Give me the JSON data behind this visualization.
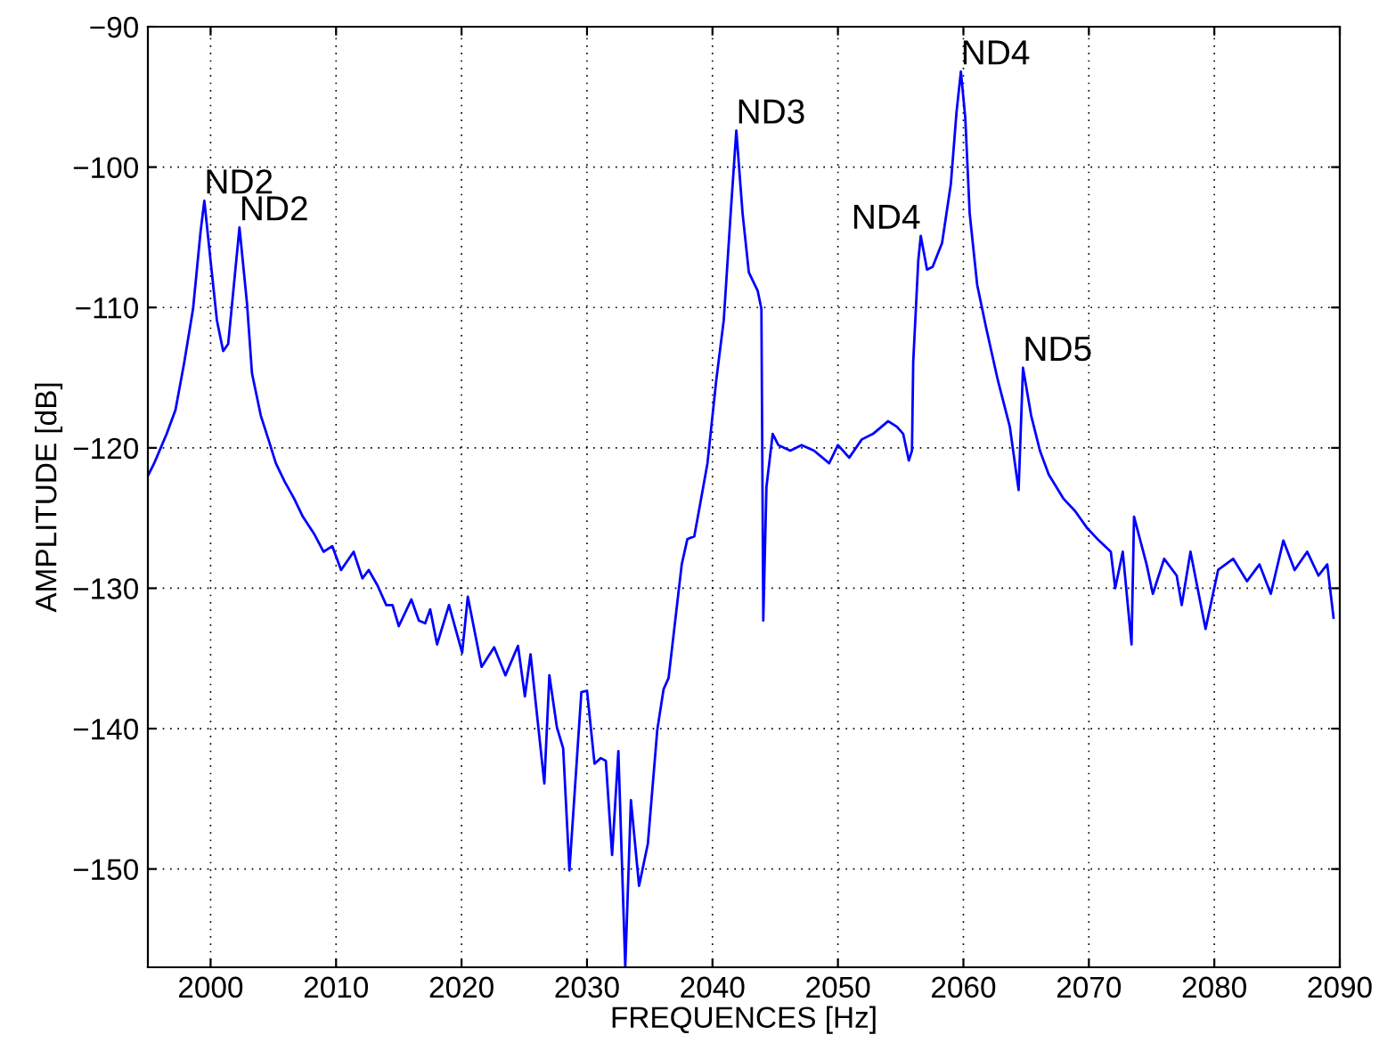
{
  "chart_data": {
    "type": "line",
    "xlabel": "FREQUENCES [Hz]",
    "ylabel": "AMPLITUDE [dB]",
    "series": [
      {
        "color": "#0000ff",
        "x": [
          1995.05,
          1995.5,
          1996.5,
          1997.2,
          1997.9,
          1998.6,
          1999.2,
          1999.5,
          2000,
          2000.5,
          2001,
          2001.4,
          2001.9,
          2002.3,
          2002.9,
          2003.3,
          2004.0,
          2004.75,
          2005.2,
          2005.9,
          2006.65,
          2007.35,
          2008.3,
          2009,
          2009.7,
          2010.4,
          2011.4,
          2012.1,
          2012.6,
          2013.3,
          2014,
          2014.5,
          2015,
          2016,
          2016.6,
          2017.1,
          2017.5,
          2018.05,
          2019,
          2020.05,
          2020.5,
          2021.6,
          2022.6,
          2023.5,
          2024.5,
          2025.05,
          2025.5,
          2026.6,
          2027,
          2027.6,
          2028.1,
          2028.6,
          2029.55,
          2030,
          2030.6,
          2031.1,
          2031.5,
          2032,
          2032.5,
          2033.05,
          2033.5,
          2034.15,
          2034.85,
          2035.6,
          2036.1,
          2036.5,
          2037.55,
          2038.0,
          2038.55,
          2039.1,
          2039.6,
          2040.3,
          2040.9,
          2041.45,
          2041.9,
          2042.4,
          2042.9,
          2043.6,
          2043.9,
          2044.05,
          2044.3,
          2044.8,
          2045.25,
          2046.2,
          2047.1,
          2048.1,
          2049.3,
          2050,
          2050.9,
          2051.9,
          2052.8,
          2054,
          2054.7,
          2055.2,
          2055.65,
          2055.9,
          2056.0,
          2056.4,
          2056.6,
          2057.1,
          2057.55,
          2058.3,
          2059,
          2059.45,
          2059.8,
          2060.15,
          2060.5,
          2061.1,
          2061.8,
          2062.75,
          2063.7,
          2064.4,
          2064.75,
          2065.4,
          2066.1,
          2066.8,
          2067.96,
          2068.9,
          2069.85,
          2070.8,
          2071.75,
          2072.1,
          2072.7,
          2073.4,
          2073.6,
          2074.6,
          2075.1,
          2076,
          2077,
          2077.4,
          2078.1,
          2079.3,
          2080.3,
          2081.5,
          2082.6,
          2083.6,
          2084.5,
          2085.5,
          2086.4,
          2087.4,
          2088.3,
          2089,
          2089.5
        ],
        "values": [
          -121.9,
          -121.1,
          -119,
          -117.3,
          -113.9,
          -110.1,
          -104.6,
          -102.4,
          -106.7,
          -110.9,
          -113.1,
          -112.6,
          -108,
          -104.3,
          -109.7,
          -114.7,
          -117.7,
          -119.8,
          -121.1,
          -122.4,
          -123.6,
          -124.9,
          -126.2,
          -127.4,
          -127,
          -128.7,
          -127.4,
          -129.3,
          -128.7,
          -129.8,
          -131.2,
          -131.2,
          -132.7,
          -130.8,
          -132.3,
          -132.5,
          -131.5,
          -134,
          -131.2,
          -134.6,
          -130.6,
          -135.6,
          -134.2,
          -136.2,
          -134.1,
          -137.7,
          -134.7,
          -143.9,
          -136.2,
          -139.9,
          -141.4,
          -150.1,
          -137.4,
          -137.3,
          -142.5,
          -142.1,
          -142.3,
          -149,
          -141.6,
          -157,
          -145.1,
          -151.2,
          -148.2,
          -140.1,
          -137.2,
          -136.4,
          -128.3,
          -126.5,
          -126.3,
          -123.6,
          -121.1,
          -115.2,
          -110.9,
          -103.3,
          -97.4,
          -103.3,
          -107.5,
          -108.8,
          -110.1,
          -132.3,
          -122.8,
          -119,
          -119.8,
          -120.2,
          -119.8,
          -120.2,
          -121.1,
          -119.8,
          -120.7,
          -119.4,
          -119,
          -118.1,
          -118.5,
          -119,
          -120.9,
          -120.2,
          -113.9,
          -106.7,
          -104.9,
          -107.3,
          -107.1,
          -105.4,
          -101.2,
          -96.1,
          -93.2,
          -96.5,
          -103.3,
          -108.4,
          -111.4,
          -115.2,
          -118.5,
          -123,
          -114.3,
          -117.7,
          -120.2,
          -121.9,
          -123.6,
          -124.5,
          -125.7,
          -126.6,
          -127.4,
          -130,
          -127.4,
          -134,
          -124.9,
          -128.3,
          -130.4,
          -127.9,
          -129.1,
          -131.2,
          -127.4,
          -132.9,
          -128.7,
          -127.9,
          -129.5,
          -128.3,
          -130.4,
          -126.6,
          -128.7,
          -127.4,
          -129.1,
          -128.3,
          -132.1
        ]
      }
    ],
    "xlim": [
      1995,
      2090
    ],
    "ylim": [
      -157,
      -90
    ],
    "xticks": [
      2000,
      2010,
      2020,
      2030,
      2040,
      2050,
      2060,
      2070,
      2080,
      2090
    ],
    "yticks": [
      {
        "value": -150,
        "label": "−150"
      },
      {
        "value": -140,
        "label": "−140"
      },
      {
        "value": -130,
        "label": "−130"
      },
      {
        "value": -120,
        "label": "−120"
      },
      {
        "value": -110,
        "label": "−110"
      },
      {
        "value": -100,
        "label": "−100"
      },
      {
        "value": -90,
        "label": "−90"
      }
    ],
    "grid": true,
    "marker": "none",
    "line_style": "solid",
    "annotations": [
      {
        "text": "ND2",
        "x": 1999.5,
        "y": -102.4
      },
      {
        "text": "ND2",
        "x": 2002.3,
        "y": -104.3
      },
      {
        "text": "ND3",
        "x": 2041.9,
        "y": -97.4
      },
      {
        "text": "ND4",
        "x": 2056.6,
        "y": -104.9
      },
      {
        "text": "ND4",
        "x": 2059.8,
        "y": -93.2
      },
      {
        "text": "ND5",
        "x": 2064.75,
        "y": -114.3
      }
    ]
  }
}
